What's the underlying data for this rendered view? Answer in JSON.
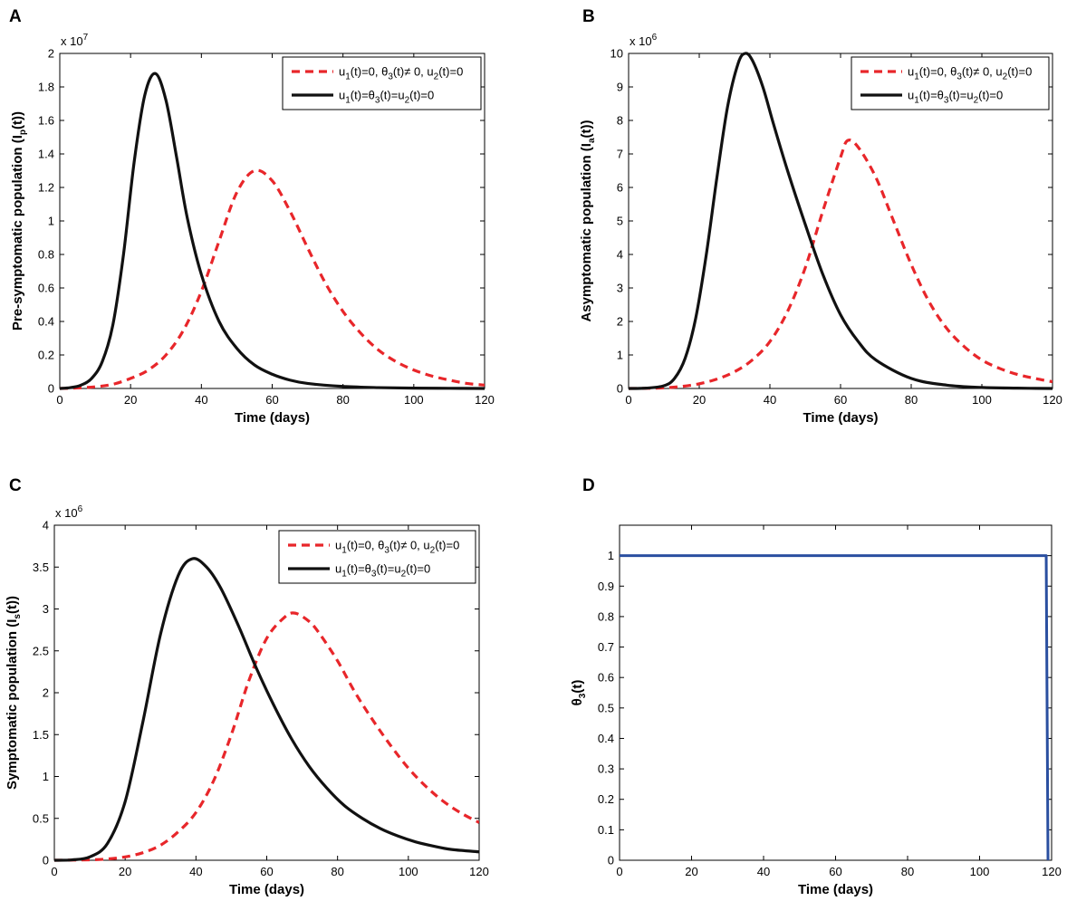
{
  "figure": {
    "legend": {
      "series_dashed": {
        "parts": [
          [
            "u",
            "1",
            "(t)=0, "
          ],
          [
            "θ",
            "3",
            "(t)≠ 0, "
          ],
          [
            "u",
            "2",
            "(t)=0"
          ]
        ]
      },
      "series_solid": {
        "parts": [
          [
            "u",
            "1",
            "(t)="
          ],
          [
            "θ",
            "3",
            "(t)="
          ],
          [
            "u",
            "2",
            "(t)=0"
          ]
        ]
      }
    },
    "colors": {
      "dashed": "#e8262a",
      "solid": "#111111",
      "theta": "#2a4fa0"
    }
  },
  "chart_data": [
    {
      "panel": "A",
      "type": "line",
      "title": "",
      "xlabel": "Time (days)",
      "ylabel": {
        "main": "Pre-symptomatic population (I",
        "sub": "p",
        "tail": "(t))"
      },
      "exponent": {
        "base": "x 10",
        "power": "7"
      },
      "xlim": [
        0,
        120
      ],
      "ylim": [
        0,
        2
      ],
      "xticks": [
        0,
        20,
        40,
        60,
        80,
        100,
        120
      ],
      "yticks": [
        0,
        0.2,
        0.4,
        0.6,
        0.8,
        1,
        1.2,
        1.4,
        1.6,
        1.8,
        2
      ],
      "ytick_labels": [
        "0",
        "0.2",
        "0.4",
        "0.6",
        "0.8",
        "1",
        "1.2",
        "1.4",
        "1.6",
        "1.8",
        "2"
      ],
      "legend_position": "top-right",
      "series": [
        {
          "name": "u1(t)=0, θ3(t)≠ 0, u2(t)=0",
          "style": "dashed",
          "x": [
            0,
            5,
            10,
            15,
            20,
            25,
            30,
            35,
            40,
            45,
            50,
            55,
            60,
            65,
            70,
            75,
            80,
            85,
            90,
            95,
            100,
            105,
            110,
            115,
            120
          ],
          "y": [
            0.0,
            0.003,
            0.01,
            0.025,
            0.06,
            0.11,
            0.2,
            0.35,
            0.58,
            0.88,
            1.17,
            1.3,
            1.24,
            1.06,
            0.84,
            0.63,
            0.46,
            0.33,
            0.23,
            0.16,
            0.11,
            0.075,
            0.05,
            0.03,
            0.02
          ]
        },
        {
          "name": "u1(t)=θ3(t)=u2(t)=0",
          "style": "solid",
          "x": [
            0,
            3,
            6,
            9,
            12,
            15,
            18,
            21,
            24,
            27,
            30,
            33,
            36,
            40,
            45,
            50,
            55,
            60,
            65,
            70,
            80,
            90,
            100,
            110,
            120
          ],
          "y": [
            0.0,
            0.005,
            0.02,
            0.06,
            0.16,
            0.38,
            0.8,
            1.35,
            1.75,
            1.88,
            1.72,
            1.38,
            1.02,
            0.68,
            0.4,
            0.24,
            0.14,
            0.085,
            0.05,
            0.03,
            0.012,
            0.005,
            0.002,
            0.001,
            0.0
          ]
        }
      ]
    },
    {
      "panel": "B",
      "type": "line",
      "title": "",
      "xlabel": "Time (days)",
      "ylabel": {
        "main": "Asymptomatic population (I",
        "sub": "a",
        "tail": "(t))"
      },
      "exponent": {
        "base": "x 10",
        "power": "6"
      },
      "xlim": [
        0,
        120
      ],
      "ylim": [
        0,
        10
      ],
      "xticks": [
        0,
        20,
        40,
        60,
        80,
        100,
        120
      ],
      "yticks": [
        0,
        1,
        2,
        3,
        4,
        5,
        6,
        7,
        8,
        9,
        10
      ],
      "ytick_labels": [
        "0",
        "1",
        "2",
        "3",
        "4",
        "5",
        "6",
        "7",
        "8",
        "9",
        "10"
      ],
      "legend_position": "top-right",
      "series": [
        {
          "name": "u1(t)=0, θ3(t)≠ 0, u2(t)=0",
          "style": "dashed",
          "x": [
            0,
            5,
            10,
            15,
            20,
            25,
            30,
            35,
            40,
            45,
            50,
            55,
            60,
            62,
            65,
            70,
            75,
            80,
            85,
            90,
            95,
            100,
            105,
            110,
            115,
            120
          ],
          "y": [
            0.0,
            0.005,
            0.02,
            0.06,
            0.14,
            0.28,
            0.5,
            0.85,
            1.4,
            2.3,
            3.6,
            5.3,
            6.9,
            7.4,
            7.2,
            6.3,
            5.0,
            3.7,
            2.6,
            1.8,
            1.25,
            0.85,
            0.6,
            0.42,
            0.3,
            0.2
          ]
        },
        {
          "name": "u1(t)=θ3(t)=u2(t)=0",
          "style": "solid",
          "x": [
            0,
            5,
            10,
            13,
            16,
            19,
            22,
            25,
            28,
            31,
            33,
            35,
            38,
            41,
            45,
            50,
            55,
            60,
            65,
            70,
            80,
            90,
            100,
            110,
            120
          ],
          "y": [
            0.0,
            0.01,
            0.08,
            0.3,
            0.9,
            2.1,
            4.0,
            6.3,
            8.4,
            9.7,
            10.0,
            9.8,
            9.0,
            7.9,
            6.5,
            4.9,
            3.4,
            2.2,
            1.4,
            0.85,
            0.3,
            0.1,
            0.03,
            0.01,
            0.0
          ]
        }
      ]
    },
    {
      "panel": "C",
      "type": "line",
      "title": "",
      "xlabel": "Time (days)",
      "ylabel": {
        "main": "Symptomatic population (I",
        "sub": "s",
        "tail": "(t))"
      },
      "exponent": {
        "base": "x 10",
        "power": "6"
      },
      "xlim": [
        0,
        120
      ],
      "ylim": [
        0,
        4
      ],
      "xticks": [
        0,
        20,
        40,
        60,
        80,
        100,
        120
      ],
      "yticks": [
        0,
        0.5,
        1,
        1.5,
        2,
        2.5,
        3,
        3.5,
        4
      ],
      "ytick_labels": [
        "0",
        "0.5",
        "1",
        "1.5",
        "2",
        "2.5",
        "3",
        "3.5",
        "4"
      ],
      "legend_position": "top-right",
      "series": [
        {
          "name": "u1(t)=0, θ3(t)≠ 0, u2(t)=0",
          "style": "dashed",
          "x": [
            0,
            10,
            15,
            20,
            25,
            30,
            35,
            40,
            45,
            50,
            55,
            60,
            65,
            68,
            72,
            75,
            80,
            85,
            90,
            95,
            100,
            105,
            110,
            115,
            120
          ],
          "y": [
            0.0,
            0.005,
            0.015,
            0.04,
            0.09,
            0.18,
            0.34,
            0.57,
            0.95,
            1.5,
            2.15,
            2.65,
            2.9,
            2.95,
            2.85,
            2.7,
            2.38,
            2.0,
            1.67,
            1.37,
            1.1,
            0.88,
            0.7,
            0.56,
            0.45
          ]
        },
        {
          "name": "u1(t)=θ3(t)=u2(t)=0",
          "style": "solid",
          "x": [
            0,
            5,
            10,
            15,
            20,
            25,
            30,
            35,
            39,
            43,
            47,
            52,
            57,
            62,
            67,
            72,
            77,
            82,
            87,
            92,
            97,
            102,
            107,
            112,
            120
          ],
          "y": [
            0.0,
            0.005,
            0.04,
            0.2,
            0.7,
            1.65,
            2.7,
            3.4,
            3.6,
            3.5,
            3.25,
            2.8,
            2.3,
            1.85,
            1.45,
            1.12,
            0.86,
            0.65,
            0.5,
            0.38,
            0.29,
            0.22,
            0.17,
            0.13,
            0.1
          ]
        }
      ]
    },
    {
      "panel": "D",
      "type": "line",
      "title": "",
      "xlabel": "Time (days)",
      "ylabel": {
        "main": "θ",
        "sub": "3",
        "tail": "(t)"
      },
      "exponent": null,
      "xlim": [
        0,
        120
      ],
      "ylim": [
        0,
        1.1
      ],
      "xticks": [
        0,
        20,
        40,
        60,
        80,
        100,
        120
      ],
      "yticks": [
        0,
        0.1,
        0.2,
        0.3,
        0.4,
        0.5,
        0.6,
        0.7,
        0.8,
        0.9,
        1
      ],
      "ytick_labels": [
        "0",
        "0.1",
        "0.2",
        "0.3",
        "0.4",
        "0.5",
        "0.6",
        "0.7",
        "0.8",
        "0.9",
        "1"
      ],
      "legend_position": "none",
      "series": [
        {
          "name": "θ3(t)",
          "style": "theta",
          "x": [
            0,
            118.5,
            119.0
          ],
          "y": [
            1.0,
            1.0,
            0.0
          ]
        }
      ]
    }
  ]
}
